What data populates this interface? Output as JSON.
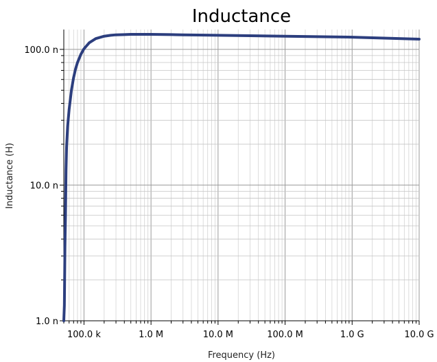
{
  "chart_data": {
    "type": "line",
    "title": "Inductance",
    "xlabel": "Frequency (Hz)",
    "ylabel": "Inductance (H)",
    "x_scale": "log",
    "y_scale": "log",
    "xlim": [
      50000,
      10000000000
    ],
    "ylim": [
      1e-09,
      1.4e-07
    ],
    "grid": true,
    "x_ticks": [
      {
        "value": 100000,
        "label": "100.0 k"
      },
      {
        "value": 1000000,
        "label": "1.0 M"
      },
      {
        "value": 10000000,
        "label": "10.0 M"
      },
      {
        "value": 100000000,
        "label": "100.0 M"
      },
      {
        "value": 1000000000,
        "label": "1.0 G"
      },
      {
        "value": 10000000000,
        "label": "10.0 G"
      }
    ],
    "y_ticks": [
      {
        "value": 1e-09,
        "label": "1.0 n"
      },
      {
        "value": 1e-08,
        "label": "10.0 n"
      },
      {
        "value": 1e-07,
        "label": "100.0 n"
      }
    ],
    "series": [
      {
        "color": "#2c3e7e",
        "x": [
          50000,
          51000,
          52000,
          53000,
          54000,
          55000,
          57000,
          60000,
          65000,
          70000,
          75000,
          80000,
          90000,
          100000,
          120000,
          150000,
          200000,
          250000,
          300000,
          400000,
          500000,
          700000,
          1000000,
          2000000,
          3000000,
          5000000,
          10000000,
          30000000,
          100000000,
          300000000,
          1000000000,
          3000000000,
          10000000000
        ],
        "y": [
          1e-09,
          1.3e-09,
          3.5e-09,
          6e-09,
          1.3e-08,
          1.9e-08,
          2.7e-08,
          3.6e-08,
          5e-08,
          6.2e-08,
          7.2e-08,
          8e-08,
          9.2e-08,
          1.01e-07,
          1.12e-07,
          1.2e-07,
          1.25e-07,
          1.27e-07,
          1.28e-07,
          1.285e-07,
          1.29e-07,
          1.29e-07,
          1.29e-07,
          1.285e-07,
          1.28e-07,
          1.275e-07,
          1.27e-07,
          1.26e-07,
          1.25e-07,
          1.24e-07,
          1.23e-07,
          1.21e-07,
          1.19e-07
        ]
      }
    ]
  }
}
